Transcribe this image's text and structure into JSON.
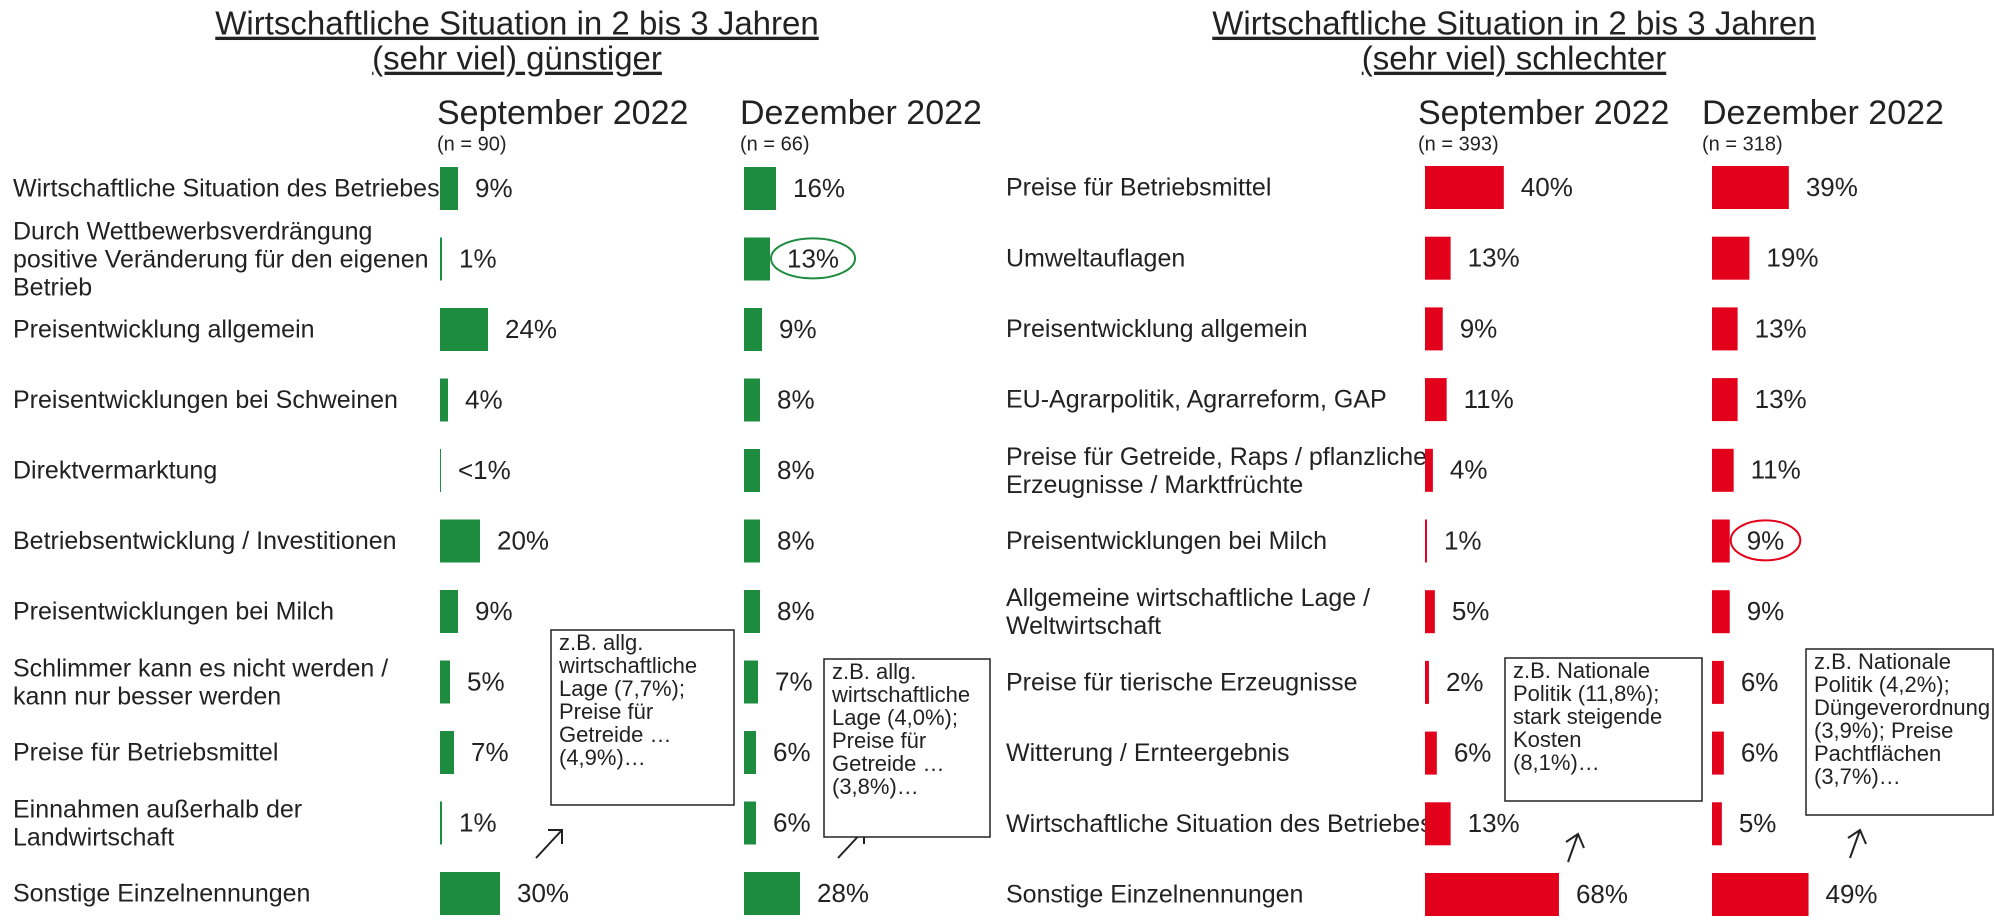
{
  "chart_data": [
    {
      "type": "bar",
      "orientation": "horizontal",
      "title": "Wirtschaftliche Situation in 2 bis 3 Jahren",
      "subtitle": "(sehr viel) günstiger",
      "categories": [
        "Wirtschaftliche Situation des Betriebes",
        "Durch Wettbewerbsverdrängung\npositive Veränderung für den eigenen\nBetrieb",
        "Preisentwicklung allgemein",
        "Preisentwicklungen bei Schweinen",
        "Direktvermarktung",
        "Betriebsentwicklung / Investitionen",
        "Preisentwicklungen bei Milch",
        "Schlimmer kann es nicht werden /\nkann nur besser werden",
        "Preise für Betriebsmittel",
        "Einnahmen außerhalb der\nLandwirtschaft",
        "Sonstige Einzelnennungen"
      ],
      "series": [
        {
          "name": "September 2022",
          "n_label": "(n = 90)",
          "color": "#1e8c3f",
          "values": [
            9,
            1,
            24,
            4,
            0.5,
            20,
            9,
            5,
            7,
            1,
            30
          ],
          "value_labels": [
            "9%",
            "1%",
            "24%",
            "4%",
            "<1%",
            "20%",
            "9%",
            "5%",
            "7%",
            "1%",
            "30%"
          ],
          "note": "z.B. allg.\nwirtschaftliche\nLage (7,7%);\nPreise für\nGetreide …\n(4,9%)…"
        },
        {
          "name": "Dezember 2022",
          "n_label": "(n = 66)",
          "color": "#1e8c3f",
          "values": [
            16,
            13,
            9,
            8,
            8,
            8,
            8,
            7,
            6,
            6,
            28
          ],
          "value_labels": [
            "16%",
            "13%",
            "9%",
            "8%",
            "8%",
            "8%",
            "8%",
            "7%",
            "6%",
            "6%",
            "28%"
          ],
          "highlight": 1,
          "highlight_color": "#1e8c3f",
          "note": "z.B. allg.\nwirtschaftliche\nLage (4,0%);\nPreise für\nGetreide …\n(3,8%)…"
        }
      ]
    },
    {
      "type": "bar",
      "orientation": "horizontal",
      "title": "Wirtschaftliche Situation in 2 bis 3 Jahren",
      "subtitle": "(sehr viel) schlechter",
      "categories": [
        "Preise für Betriebsmittel",
        "Umweltauflagen",
        "Preisentwicklung allgemein",
        "EU-Agrarpolitik, Agrarreform, GAP",
        "Preise für Getreide, Raps / pflanzliche\nErzeugnisse / Marktfrüchte",
        "Preisentwicklungen bei Milch",
        "Allgemeine wirtschaftliche Lage /\nWeltwirtschaft",
        "Preise für tierische Erzeugnisse",
        "Witterung / Ernteergebnis",
        "Wirtschaftliche Situation des Betriebes",
        "Sonstige Einzelnennungen"
      ],
      "series": [
        {
          "name": "September 2022",
          "n_label": "(n = 393)",
          "color": "#e2001a",
          "values": [
            40,
            13,
            9,
            11,
            4,
            1,
            5,
            2,
            6,
            13,
            68
          ],
          "value_labels": [
            "40%",
            "13%",
            "9%",
            "11%",
            "4%",
            "1%",
            "5%",
            "2%",
            "6%",
            "13%",
            "68%"
          ],
          "note": "z.B. Nationale\nPolitik (11,8%);\nstark steigende\nKosten\n(8,1%)…"
        },
        {
          "name": "Dezember 2022",
          "n_label": "(n = 318)",
          "color": "#e2001a",
          "values": [
            39,
            19,
            13,
            13,
            11,
            9,
            9,
            6,
            6,
            5,
            49
          ],
          "value_labels": [
            "39%",
            "19%",
            "13%",
            "13%",
            "11%",
            "9%",
            "9%",
            "6%",
            "6%",
            "5%",
            "49%"
          ],
          "highlight": 5,
          "highlight_color": "#e2001a",
          "note": "z.B. Nationale\nPolitik (4,2%);\nDüngeverordnung\n(3,9%); Preise\nPachtflächen\n(3,7%)…"
        }
      ]
    }
  ]
}
